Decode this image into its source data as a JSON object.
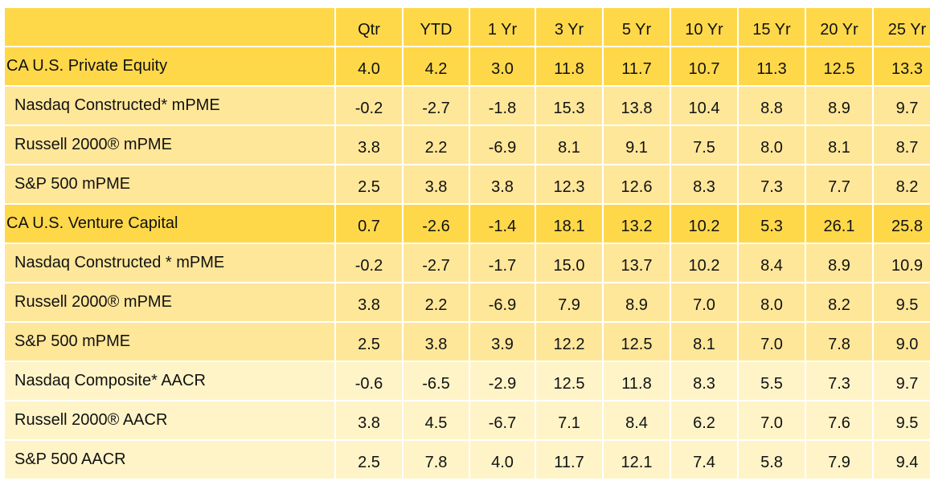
{
  "table": {
    "headers": [
      "",
      "Qtr",
      "YTD",
      "1 Yr",
      "3 Yr",
      "5 Yr",
      "10 Yr",
      "15 Yr",
      "20 Yr",
      "25 Yr"
    ],
    "rows": [
      {
        "type": "group",
        "label": "CA U.S. Private Equity",
        "values": [
          "4.0",
          "4.2",
          "3.0",
          "11.8",
          "11.7",
          "10.7",
          "11.3",
          "12.5",
          "13.3"
        ]
      },
      {
        "type": "sub",
        "label": "Nasdaq Constructed* mPME",
        "values": [
          "-0.2",
          "-2.7",
          "-1.8",
          "15.3",
          "13.8",
          "10.4",
          "8.8",
          "8.9",
          "9.7"
        ]
      },
      {
        "type": "sub",
        "label": "Russell 2000® mPME",
        "values": [
          "3.8",
          "2.2",
          "-6.9",
          "8.1",
          "9.1",
          "7.5",
          "8.0",
          "8.1",
          "8.7"
        ]
      },
      {
        "type": "sub",
        "label": "S&P 500 mPME",
        "values": [
          "2.5",
          "3.8",
          "3.8",
          "12.3",
          "12.6",
          "8.3",
          "7.3",
          "7.7",
          "8.2"
        ]
      },
      {
        "type": "group",
        "label": "CA U.S. Venture Capital",
        "values": [
          "0.7",
          "-2.6",
          "-1.4",
          "18.1",
          "13.2",
          "10.2",
          "5.3",
          "26.1",
          "25.8"
        ]
      },
      {
        "type": "sub",
        "label": "Nasdaq Constructed * mPME",
        "values": [
          "-0.2",
          "-2.7",
          "-1.7",
          "15.0",
          "13.7",
          "10.2",
          "8.4",
          "8.9",
          "10.9"
        ]
      },
      {
        "type": "sub",
        "label": "Russell 2000® mPME",
        "values": [
          "3.8",
          "2.2",
          "-6.9",
          "7.9",
          "8.9",
          "7.0",
          "8.0",
          "8.2",
          "9.5"
        ]
      },
      {
        "type": "sub",
        "label": "S&P 500 mPME",
        "values": [
          "2.5",
          "3.8",
          "3.9",
          "12.2",
          "12.5",
          "8.1",
          "7.0",
          "7.8",
          "9.0"
        ]
      },
      {
        "type": "index",
        "label": "Nasdaq Composite* AACR",
        "values": [
          "-0.6",
          "-6.5",
          "-2.9",
          "12.5",
          "11.8",
          "8.3",
          "5.5",
          "7.3",
          "9.7"
        ]
      },
      {
        "type": "index",
        "label": "Russell 2000® AACR",
        "values": [
          "3.8",
          "4.5",
          "-6.7",
          "7.1",
          "8.4",
          "6.2",
          "7.0",
          "7.6",
          "9.5"
        ]
      },
      {
        "type": "index",
        "label": "S&P 500 AACR",
        "values": [
          "2.5",
          "7.8",
          "4.0",
          "11.7",
          "12.1",
          "7.4",
          "5.8",
          "7.9",
          "9.4"
        ]
      }
    ]
  },
  "colors": {
    "header_and_group": "#ffd84a",
    "benchmark_row": "#ffe79a",
    "index_row": "#fff4c8"
  }
}
